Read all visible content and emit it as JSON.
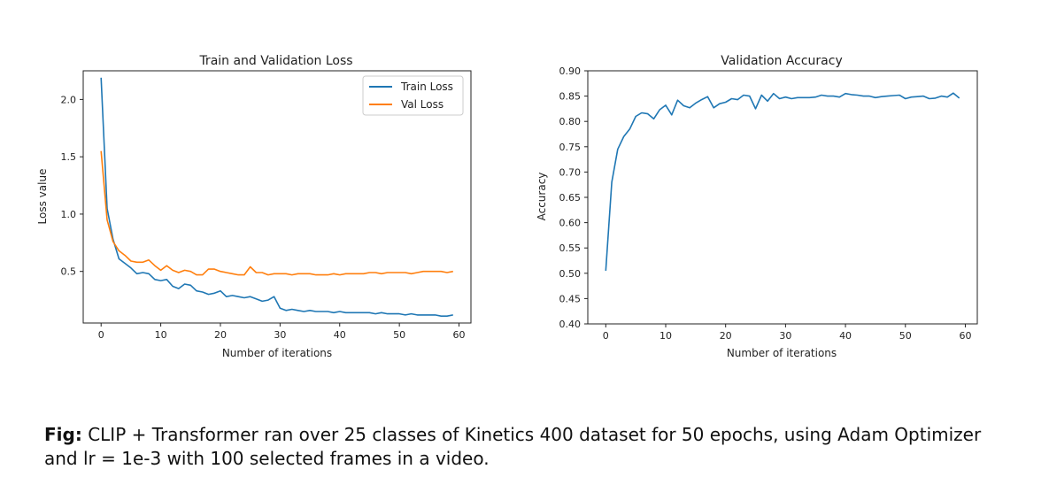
{
  "chart_data": [
    {
      "type": "line",
      "title": "Train and Validation Loss",
      "xlabel": "Number of iterations",
      "ylabel": "Loss value",
      "xlim": [
        -3,
        62
      ],
      "ylim": [
        0.05,
        2.25
      ],
      "xticks": [
        0,
        10,
        20,
        30,
        40,
        50,
        60
      ],
      "yticks": [
        0.5,
        1.0,
        1.5,
        2.0
      ],
      "grid": false,
      "legend": "top-right",
      "series": [
        {
          "name": "Train Loss",
          "color": "#1f77b4",
          "x": [
            0,
            1,
            2,
            3,
            4,
            5,
            6,
            7,
            8,
            9,
            10,
            11,
            12,
            13,
            14,
            15,
            16,
            17,
            18,
            19,
            20,
            21,
            22,
            23,
            24,
            25,
            26,
            27,
            28,
            29,
            30,
            31,
            32,
            33,
            34,
            35,
            36,
            37,
            38,
            39,
            40,
            41,
            42,
            43,
            44,
            45,
            46,
            47,
            48,
            49,
            50,
            51,
            52,
            53,
            54,
            55,
            56,
            57,
            58,
            59
          ],
          "values": [
            2.19,
            1.05,
            0.78,
            0.61,
            0.57,
            0.53,
            0.48,
            0.49,
            0.48,
            0.43,
            0.42,
            0.43,
            0.37,
            0.35,
            0.39,
            0.38,
            0.33,
            0.32,
            0.3,
            0.31,
            0.33,
            0.28,
            0.29,
            0.28,
            0.27,
            0.28,
            0.26,
            0.24,
            0.25,
            0.28,
            0.18,
            0.16,
            0.17,
            0.16,
            0.15,
            0.16,
            0.15,
            0.15,
            0.15,
            0.14,
            0.15,
            0.14,
            0.14,
            0.14,
            0.14,
            0.14,
            0.13,
            0.14,
            0.13,
            0.13,
            0.13,
            0.12,
            0.13,
            0.12,
            0.12,
            0.12,
            0.12,
            0.11,
            0.11,
            0.12
          ]
        },
        {
          "name": "Val Loss",
          "color": "#ff7f0e",
          "x": [
            0,
            1,
            2,
            3,
            4,
            5,
            6,
            7,
            8,
            9,
            10,
            11,
            12,
            13,
            14,
            15,
            16,
            17,
            18,
            19,
            20,
            21,
            22,
            23,
            24,
            25,
            26,
            27,
            28,
            29,
            30,
            31,
            32,
            33,
            34,
            35,
            36,
            37,
            38,
            39,
            40,
            41,
            42,
            43,
            44,
            45,
            46,
            47,
            48,
            49,
            50,
            51,
            52,
            53,
            54,
            55,
            56,
            57,
            58,
            59
          ],
          "values": [
            1.55,
            0.95,
            0.76,
            0.68,
            0.64,
            0.59,
            0.58,
            0.58,
            0.6,
            0.55,
            0.51,
            0.55,
            0.51,
            0.49,
            0.51,
            0.5,
            0.47,
            0.47,
            0.52,
            0.52,
            0.5,
            0.49,
            0.48,
            0.47,
            0.47,
            0.54,
            0.49,
            0.49,
            0.47,
            0.48,
            0.48,
            0.48,
            0.47,
            0.48,
            0.48,
            0.48,
            0.47,
            0.47,
            0.47,
            0.48,
            0.47,
            0.48,
            0.48,
            0.48,
            0.48,
            0.49,
            0.49,
            0.48,
            0.49,
            0.49,
            0.49,
            0.49,
            0.48,
            0.49,
            0.5,
            0.5,
            0.5,
            0.5,
            0.49,
            0.5
          ]
        }
      ]
    },
    {
      "type": "line",
      "title": "Validation Accuracy",
      "xlabel": "Number of iterations",
      "ylabel": "Accuracy",
      "xlim": [
        -3,
        62
      ],
      "ylim": [
        0.4,
        0.9
      ],
      "xticks": [
        0,
        10,
        20,
        30,
        40,
        50,
        60
      ],
      "yticks": [
        0.4,
        0.45,
        0.5,
        0.55,
        0.6,
        0.65,
        0.7,
        0.75,
        0.8,
        0.85,
        0.9
      ],
      "grid": false,
      "series": [
        {
          "color": "#1f77b4",
          "x": [
            0,
            1,
            2,
            3,
            4,
            5,
            6,
            7,
            8,
            9,
            10,
            11,
            12,
            13,
            14,
            15,
            16,
            17,
            18,
            19,
            20,
            21,
            22,
            23,
            24,
            25,
            26,
            27,
            28,
            29,
            30,
            31,
            32,
            33,
            34,
            35,
            36,
            37,
            38,
            39,
            40,
            41,
            42,
            43,
            44,
            45,
            46,
            47,
            48,
            49,
            50,
            51,
            52,
            53,
            54,
            55,
            56,
            57,
            58,
            59
          ],
          "values": [
            0.505,
            0.68,
            0.745,
            0.77,
            0.785,
            0.81,
            0.817,
            0.815,
            0.805,
            0.823,
            0.832,
            0.813,
            0.842,
            0.831,
            0.827,
            0.836,
            0.843,
            0.849,
            0.827,
            0.835,
            0.838,
            0.845,
            0.843,
            0.852,
            0.85,
            0.825,
            0.852,
            0.84,
            0.855,
            0.845,
            0.848,
            0.845,
            0.847,
            0.847,
            0.847,
            0.848,
            0.852,
            0.85,
            0.85,
            0.848,
            0.855,
            0.853,
            0.852,
            0.85,
            0.85,
            0.847,
            0.849,
            0.85,
            0.851,
            0.852,
            0.845,
            0.848,
            0.849,
            0.85,
            0.845,
            0.846,
            0.85,
            0.848,
            0.856,
            0.846
          ]
        }
      ]
    }
  ],
  "caption": {
    "bold": "Fig:",
    "text": " CLIP + Transformer  ran over 25 classes of Kinetics 400 dataset for 50 epochs, using Adam Optimizer and lr = 1e-3 with 100 selected frames in a video."
  }
}
